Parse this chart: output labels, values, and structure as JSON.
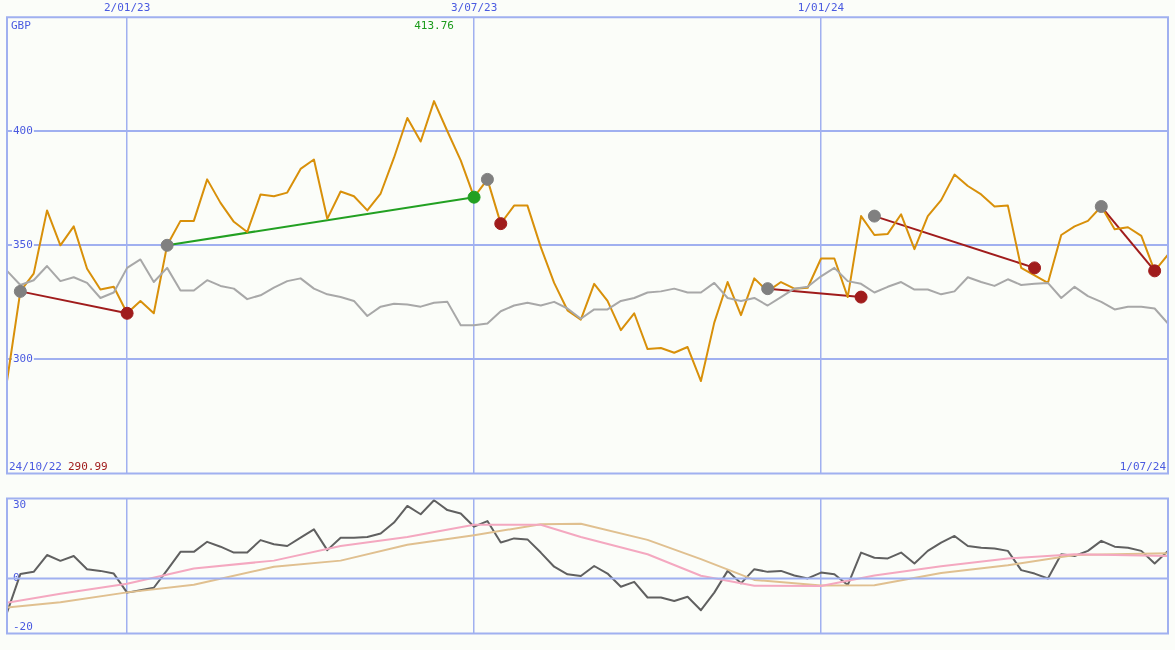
{
  "chart_data": [
    {
      "type": "line",
      "ylabel": "GBP",
      "xlim": [
        "2022-10-31",
        "2024-07-01"
      ],
      "ylim": [
        250,
        450
      ],
      "xticks": [
        {
          "value": "2023-01-02",
          "label": "2/01/23"
        },
        {
          "value": "2023-07-03",
          "label": "3/07/23"
        },
        {
          "value": "2024-01-01",
          "label": "1/01/24"
        }
      ],
      "yticks": [
        300,
        350,
        400
      ],
      "grid": true,
      "legend": false,
      "marker": "none",
      "x": [
        "2022-10-31",
        "2022-11-07",
        "2022-11-14",
        "2022-11-21",
        "2022-11-28",
        "2022-12-05",
        "2022-12-12",
        "2022-12-19",
        "2022-12-26",
        "2023-01-02",
        "2023-01-09",
        "2023-01-16",
        "2023-01-23",
        "2023-01-30",
        "2023-02-06",
        "2023-02-13",
        "2023-02-20",
        "2023-02-27",
        "2023-03-06",
        "2023-03-13",
        "2023-03-20",
        "2023-03-27",
        "2023-04-03",
        "2023-04-10",
        "2023-04-17",
        "2023-04-24",
        "2023-05-01",
        "2023-05-08",
        "2023-05-15",
        "2023-05-22",
        "2023-05-29",
        "2023-06-05",
        "2023-06-12",
        "2023-06-19",
        "2023-06-26",
        "2023-07-03",
        "2023-07-10",
        "2023-07-17",
        "2023-07-24",
        "2023-07-31",
        "2023-08-07",
        "2023-08-14",
        "2023-08-21",
        "2023-08-28",
        "2023-09-04",
        "2023-09-11",
        "2023-09-18",
        "2023-09-25",
        "2023-10-02",
        "2023-10-09",
        "2023-10-16",
        "2023-10-23",
        "2023-10-30",
        "2023-11-06",
        "2023-11-13",
        "2023-11-20",
        "2023-11-27",
        "2023-12-04",
        "2023-12-11",
        "2023-12-18",
        "2023-12-25",
        "2024-01-01",
        "2024-01-08",
        "2024-01-15",
        "2024-01-22",
        "2024-01-29",
        "2024-02-05",
        "2024-02-12",
        "2024-02-19",
        "2024-02-26",
        "2024-03-04",
        "2024-03-11",
        "2024-03-18",
        "2024-03-25",
        "2024-04-01",
        "2024-04-08",
        "2024-04-15",
        "2024-04-22",
        "2024-04-29",
        "2024-05-06",
        "2024-05-13",
        "2024-05-20",
        "2024-05-27",
        "2024-06-03",
        "2024-06-10",
        "2024-06-17",
        "2024-06-24",
        "2024-07-01"
      ],
      "series": [
        {
          "color": "#a8a8a8",
          "values": [
            338.8,
            332.6,
            334.7,
            340.9,
            334.3,
            336,
            333.5,
            326.9,
            329.3,
            340.1,
            343.8,
            333.9,
            340.1,
            330.2,
            330.2,
            334.7,
            332.2,
            331,
            326.4,
            328.1,
            331.4,
            334.3,
            335.5,
            331,
            328.5,
            327.3,
            325.6,
            319,
            323.1,
            324.4,
            324,
            323.1,
            324.8,
            325.2,
            314.9,
            314.9,
            315.7,
            321.1,
            323.6,
            324.8,
            323.6,
            325.2,
            322.3,
            317.8,
            321.9,
            321.9,
            325.6,
            326.9,
            329.3,
            329.8,
            331,
            329.3,
            329.3,
            333.5,
            326.9,
            325.6,
            326.9,
            323.6,
            327.3,
            331,
            331.8,
            336.4,
            340.1,
            334.3,
            333.1,
            329.3,
            331.8,
            333.9,
            330.6,
            330.6,
            328.5,
            329.8,
            336,
            333.9,
            332.2,
            335.1,
            332.6,
            333.1,
            333.5,
            326.9,
            331.8,
            327.7,
            325.2,
            321.9,
            323.1,
            323.1,
            322.3,
            315.7
          ]
        },
        {
          "color": "#d8900a",
          "values": [
            290.5,
            329.8,
            337.6,
            365.3,
            350,
            358.3,
            339.7,
            330.6,
            331.8,
            320.2,
            325.6,
            320.2,
            350,
            360.7,
            360.7,
            378.9,
            368.6,
            360.3,
            355.8,
            372.3,
            371.5,
            373.1,
            383.5,
            387.6,
            361.6,
            373.6,
            371.5,
            365.3,
            372.7,
            388.4,
            405.8,
            395.5,
            413.2,
            400,
            387.2,
            371.1,
            378.9,
            359.5,
            367.4,
            367.4,
            349.2,
            333.5,
            321.5,
            317.4,
            333.1,
            325.6,
            312.8,
            320.2,
            304.5,
            305,
            302.9,
            305.4,
            290.5,
            316.1,
            333.9,
            319.4,
            335.5,
            329.8,
            333.9,
            331,
            331.4,
            344.2,
            344.2,
            327.3,
            362.8,
            354.5,
            355,
            363.6,
            348.3,
            362.8,
            369.8,
            381,
            376,
            372.3,
            367,
            367.4,
            340.1,
            336.8,
            333.5,
            354.5,
            358.3,
            360.7,
            367,
            357,
            357.9,
            354.1,
            338.8,
            345.9
          ]
        },
        {
          "color": "#a01c1c",
          "x": [
            "2022-11-07",
            "2023-01-02"
          ],
          "values": [
            329.8,
            320.2
          ]
        },
        {
          "color": "#22a022",
          "x": [
            "2023-01-23",
            "2023-07-03"
          ],
          "values": [
            350,
            371.1
          ]
        },
        {
          "color": "#a01c1c",
          "x": [
            "2023-12-04",
            "2024-01-22"
          ],
          "values": [
            331,
            327.3
          ]
        },
        {
          "color": "#a01c1c",
          "x": [
            "2024-01-29",
            "2024-04-22"
          ],
          "values": [
            362.8,
            340.1
          ]
        },
        {
          "color": "#a01c1c",
          "x": [
            "2024-05-27",
            "2024-06-24"
          ],
          "values": [
            367,
            338.8
          ]
        },
        {
          "type": "scatter",
          "marker": "circle",
          "color": "#808080",
          "x": [
            "2022-11-07",
            "2023-01-23",
            "2023-07-10",
            "2023-12-04",
            "2024-01-29",
            "2024-05-27"
          ],
          "values": [
            329.8,
            350,
            378.9,
            331,
            362.8,
            367
          ]
        },
        {
          "type": "scatter",
          "marker": "circle",
          "color": "#a01c1c",
          "x": [
            "2023-01-02",
            "2023-07-17",
            "2024-01-22",
            "2024-04-22",
            "2024-06-24"
          ],
          "values": [
            320.2,
            359.5,
            327.3,
            340.1,
            338.8
          ]
        },
        {
          "type": "scatter",
          "marker": "circle",
          "color": "#22a022",
          "x": [
            "2023-07-03"
          ],
          "values": [
            371.1
          ]
        }
      ],
      "annotations": [
        "413.76",
        "24/10/22",
        "290.99",
        "1/07/24"
      ]
    },
    {
      "type": "line",
      "xlim": [
        "2022-10-31",
        "2024-07-01"
      ],
      "ylim": [
        -22.5,
        32.7
      ],
      "xticks": [
        {
          "value": "2023-01-02",
          "label": null
        },
        {
          "value": "2023-07-03",
          "label": null
        },
        {
          "value": "2024-01-01",
          "label": null
        }
      ],
      "yticks": [
        -20,
        0,
        30
      ],
      "grid": "x",
      "legend": false,
      "marker": "none",
      "tick_labels": "y",
      "ref_lines": [
        {
          "axis": "y",
          "value": 0,
          "color": "#a0b0f0"
        }
      ],
      "x": [
        "2022-10-31",
        "2022-11-07",
        "2022-11-14",
        "2022-11-21",
        "2022-11-28",
        "2022-12-05",
        "2022-12-12",
        "2022-12-19",
        "2022-12-26",
        "2023-01-02",
        "2023-01-09",
        "2023-01-16",
        "2023-01-23",
        "2023-01-30",
        "2023-02-06",
        "2023-02-13",
        "2023-02-20",
        "2023-02-27",
        "2023-03-06",
        "2023-03-13",
        "2023-03-20",
        "2023-03-27",
        "2023-04-03",
        "2023-04-10",
        "2023-04-17",
        "2023-04-24",
        "2023-05-01",
        "2023-05-08",
        "2023-05-15",
        "2023-05-22",
        "2023-05-29",
        "2023-06-05",
        "2023-06-12",
        "2023-06-19",
        "2023-06-26",
        "2023-07-03",
        "2023-07-10",
        "2023-07-17",
        "2023-07-24",
        "2023-07-31",
        "2023-08-07",
        "2023-08-14",
        "2023-08-21",
        "2023-08-28",
        "2023-09-04",
        "2023-09-11",
        "2023-09-18",
        "2023-09-25",
        "2023-10-02",
        "2023-10-09",
        "2023-10-16",
        "2023-10-23",
        "2023-10-30",
        "2023-11-06",
        "2023-11-13",
        "2023-11-20",
        "2023-11-27",
        "2023-12-04",
        "2023-12-11",
        "2023-12-18",
        "2023-12-25",
        "2024-01-01",
        "2024-01-08",
        "2024-01-15",
        "2024-01-22",
        "2024-01-29",
        "2024-02-05",
        "2024-02-12",
        "2024-02-19",
        "2024-02-26",
        "2024-03-04",
        "2024-03-11",
        "2024-03-18",
        "2024-03-25",
        "2024-04-01",
        "2024-04-08",
        "2024-04-15",
        "2024-04-22",
        "2024-04-29",
        "2024-05-06",
        "2024-05-13",
        "2024-05-20",
        "2024-05-27",
        "2024-06-03",
        "2024-06-10",
        "2024-06-17",
        "2024-06-24",
        "2024-07-01"
      ],
      "series": [
        {
          "color": "#f4a8c0",
          "x": [
            "2022-10-31",
            "2022-11-28",
            "2023-01-02",
            "2023-02-06",
            "2023-03-20",
            "2023-04-24",
            "2023-05-29",
            "2023-07-03",
            "2023-08-07",
            "2023-08-28",
            "2023-10-02",
            "2023-10-30",
            "2023-11-27",
            "2024-01-01",
            "2024-01-29",
            "2024-03-04",
            "2024-04-08",
            "2024-05-13",
            "2024-07-01"
          ],
          "values": [
            -10,
            -6.3,
            -2.2,
            4.1,
            7.3,
            13.3,
            17,
            22,
            22,
            17,
            9.9,
            1.1,
            -3,
            -3.1,
            1.2,
            5,
            8.2,
            9.9,
            9.2
          ]
        },
        {
          "color": "#e0c090",
          "x": [
            "2022-10-31",
            "2022-11-28",
            "2023-01-02",
            "2023-02-06",
            "2023-03-20",
            "2023-04-24",
            "2023-05-29",
            "2023-07-03",
            "2023-08-07",
            "2023-08-28",
            "2023-10-02",
            "2023-10-30",
            "2023-11-27",
            "2024-01-01",
            "2024-01-29",
            "2024-03-04",
            "2024-04-08",
            "2024-05-13",
            "2024-07-01"
          ],
          "values": [
            -11.9,
            -9.7,
            -5.7,
            -2.6,
            4.8,
            7.3,
            13.8,
            17.7,
            22.2,
            22.4,
            15.8,
            7.9,
            -0.6,
            -2.9,
            -2.8,
            2.2,
            5.4,
            9.6,
            10.3
          ]
        },
        {
          "color": "#606060",
          "values": [
            -14,
            1.8,
            2.7,
            9.6,
            7.2,
            9.2,
            3.8,
            3.1,
            2,
            -5.8,
            -4.8,
            -3.8,
            3.4,
            10.9,
            10.9,
            15,
            13,
            10.6,
            10.6,
            15.7,
            14,
            13.3,
            16.7,
            20.1,
            11.6,
            16.7,
            16.7,
            17,
            18.4,
            22.9,
            29.7,
            26.3,
            32,
            28,
            26.6,
            21.2,
            23.5,
            14.7,
            16.4,
            16,
            10.6,
            4.8,
            1.7,
            1,
            5.1,
            2,
            -3.4,
            -1.4,
            -7.8,
            -7.8,
            -9.2,
            -7.5,
            -13,
            -5.8,
            3.1,
            -2,
            3.8,
            2.7,
            3.1,
            1.2,
            0,
            2.4,
            1.7,
            -2.7,
            10.6,
            8.5,
            8.2,
            10.6,
            6.1,
            11.3,
            14.7,
            17.4,
            13.3,
            12.6,
            12.3,
            11.3,
            3.4,
            2,
            0,
            9.9,
            9.2,
            11.3,
            15.4,
            13,
            12.6,
            11.3,
            6.1,
            11.3
          ]
        }
      ]
    }
  ]
}
